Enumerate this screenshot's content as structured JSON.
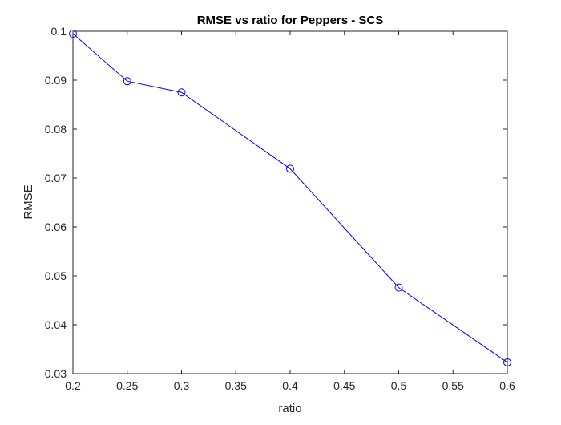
{
  "chart_data": {
    "type": "line",
    "title": "RMSE vs ratio for Peppers - SCS",
    "xlabel": "ratio",
    "ylabel": "RMSE",
    "xlim": [
      0.2,
      0.6
    ],
    "ylim": [
      0.03,
      0.1
    ],
    "xticks": [
      0.2,
      0.25,
      0.3,
      0.35,
      0.4,
      0.45,
      0.5,
      0.55,
      0.6
    ],
    "yticks": [
      0.03,
      0.04,
      0.05,
      0.06,
      0.07,
      0.08,
      0.09,
      0.1
    ],
    "xtick_labels": [
      "0.2",
      "0.25",
      "0.3",
      "0.35",
      "0.4",
      "0.45",
      "0.5",
      "0.55",
      "0.6"
    ],
    "ytick_labels": [
      "0.03",
      "0.04",
      "0.05",
      "0.06",
      "0.07",
      "0.08",
      "0.09",
      "0.1"
    ],
    "grid": false,
    "series": [
      {
        "x": [
          0.2,
          0.25,
          0.3,
          0.4,
          0.5,
          0.6
        ],
        "y": [
          0.0995,
          0.0898,
          0.0875,
          0.0719,
          0.0476,
          0.0323
        ],
        "color": "#0000ff",
        "marker": "circle"
      }
    ]
  }
}
